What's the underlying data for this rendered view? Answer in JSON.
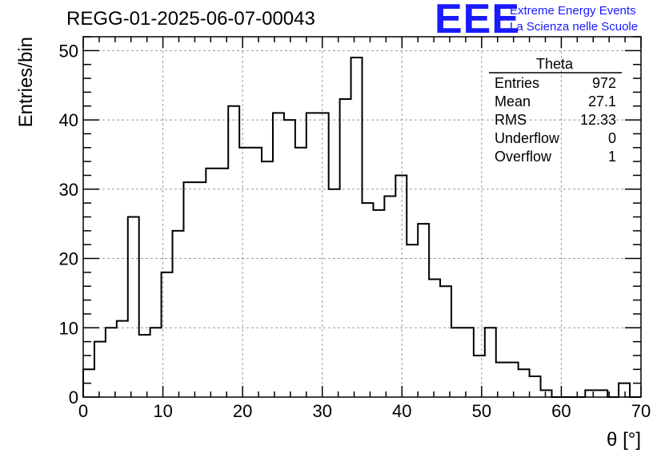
{
  "title": "REGG-01-2025-06-07-00043",
  "logo": {
    "mark": "EEE",
    "line1": "Extreme Energy Events",
    "line2": "La Scienza nelle Scuole",
    "color": "#1a1aff"
  },
  "stats": {
    "name": "Theta",
    "rows": [
      {
        "label": "Entries",
        "value": "972"
      },
      {
        "label": "Mean",
        "value": "27.1"
      },
      {
        "label": "RMS",
        "value": "12.33"
      },
      {
        "label": "Underflow",
        "value": "0"
      },
      {
        "label": "Overflow",
        "value": "1"
      }
    ]
  },
  "chart_data": {
    "type": "bar",
    "title": "REGG-01-2025-06-07-00043",
    "xlabel": "θ [°]",
    "ylabel": "Entries/bin",
    "xlim": [
      0,
      70
    ],
    "ylim": [
      0,
      52
    ],
    "bin_width": 1.4,
    "bin_edges_start": 0,
    "values": [
      4,
      8,
      10,
      11,
      26,
      9,
      10,
      18,
      24,
      31,
      31,
      33,
      33,
      42,
      36,
      36,
      34,
      41,
      40,
      36,
      41,
      41,
      30,
      43,
      49,
      28,
      27,
      29,
      32,
      22,
      25,
      17,
      16,
      10,
      10,
      6,
      10,
      5,
      5,
      4,
      3,
      1,
      0,
      0,
      0,
      1,
      1,
      0,
      2,
      0
    ],
    "x_ticks": [
      0,
      10,
      20,
      30,
      40,
      50,
      60,
      70
    ],
    "y_ticks": [
      0,
      10,
      20,
      30,
      40,
      50
    ],
    "grid": true,
    "legend": "stats box top-right"
  }
}
